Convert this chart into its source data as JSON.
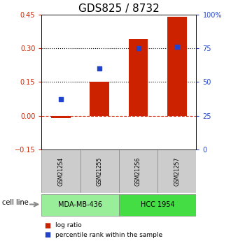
{
  "title": "GDS825 / 8732",
  "samples": [
    "GSM21254",
    "GSM21255",
    "GSM21256",
    "GSM21257"
  ],
  "log_ratio": [
    -0.01,
    0.15,
    0.34,
    0.44
  ],
  "percentile_rank_pct": [
    37,
    60,
    75,
    76
  ],
  "cell_lines": [
    {
      "name": "MDA-MB-436",
      "samples": [
        0,
        1
      ],
      "color": "#99ee99"
    },
    {
      "name": "HCC 1954",
      "samples": [
        2,
        3
      ],
      "color": "#44dd44"
    }
  ],
  "ylim_left": [
    -0.15,
    0.45
  ],
  "ylim_right": [
    0,
    100
  ],
  "hlines_dotted": [
    0.15,
    0.3
  ],
  "hline_dashed": 0.0,
  "bar_color": "#cc2200",
  "dot_color": "#2244cc",
  "bar_width": 0.5,
  "title_fontsize": 11,
  "tick_fontsize": 7,
  "bg_color": "#ffffff",
  "plot_bg": "#ffffff",
  "sample_box_color": "#cccccc",
  "left_yticks": [
    -0.15,
    0,
    0.15,
    0.3,
    0.45
  ],
  "right_yticks": [
    0,
    25,
    50,
    75,
    100
  ],
  "right_yticklabels": [
    "0",
    "25",
    "50",
    "75",
    "100%"
  ]
}
